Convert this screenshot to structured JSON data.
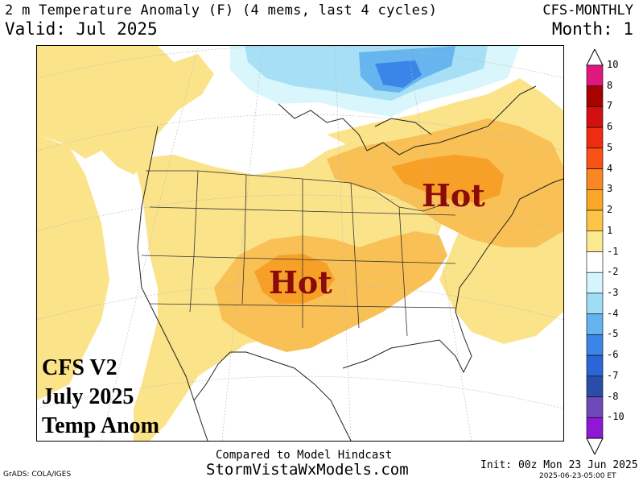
{
  "header": {
    "title": "2 m Temperature Anomaly (F) (4 mems, last 4 cycles)",
    "valid": "Valid: Jul 2025",
    "model": "CFS-MONTHLY",
    "month": "Month: 1"
  },
  "map": {
    "hot_label_1": "Hot",
    "hot_label_2": "Hot",
    "overlay_line_1": "CFS V2",
    "overlay_line_2": "July 2025",
    "overlay_line_3": "Temp Anom",
    "colors": {
      "neutral": "#ffffff",
      "warm_1_2": "#fbe38a",
      "warm_2_3": "#f9c055",
      "warm_3_4": "#f6a028",
      "cool_1_2": "#d8f6fb",
      "cool_2_3": "#a7e0f6",
      "cool_3_4": "#66b5ef",
      "cool_4_5": "#3a86e8"
    }
  },
  "legend": {
    "labels": [
      "10",
      "8",
      "7",
      "6",
      "5",
      "4",
      "3",
      "2",
      "1",
      "-1",
      "-2",
      "-3",
      "-4",
      "-5",
      "-6",
      "-7",
      "-8",
      "-10"
    ],
    "colors": [
      "#e0187d",
      "#a80101",
      "#d21010",
      "#ef2c12",
      "#fa5214",
      "#fb8724",
      "#fca628",
      "#fdc44a",
      "#fde98d",
      "#ffffff",
      "#d4f5fb",
      "#9fdcf6",
      "#63b3ef",
      "#3b85e7",
      "#2b66d8",
      "#2a4ea8",
      "#6e4ab8",
      "#8e18d6"
    ]
  },
  "footer": {
    "compared": "Compared to Model Hindcast",
    "site": "StormVistaWxModels.com",
    "grads": "GrADS: COLA/IGES",
    "init": "Init: 00z Mon 23 Jun 2025",
    "stamp": "2025-06-23-05:00 ET"
  }
}
